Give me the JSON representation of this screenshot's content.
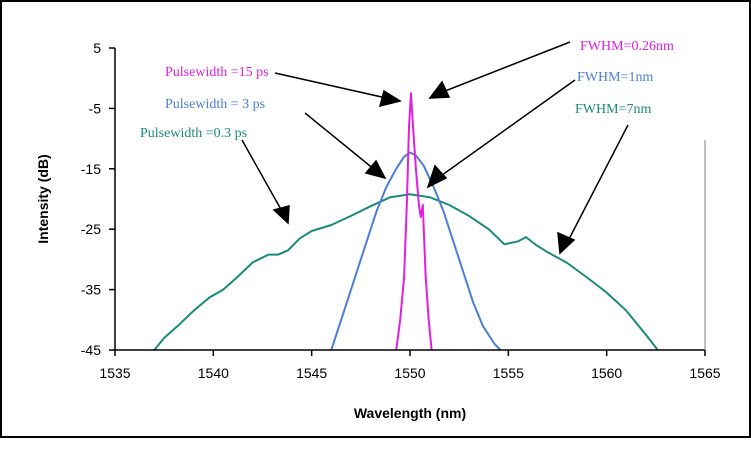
{
  "chart_data": {
    "type": "line",
    "title": "",
    "xlabel": "Wavelength (nm)",
    "ylabel": "Intensity (dB)",
    "xlim": [
      1535,
      1565
    ],
    "ylim": [
      -45,
      5
    ],
    "x_ticks": [
      "1535",
      "1540",
      "1545",
      "1550",
      "1555",
      "1560",
      "1565"
    ],
    "y_ticks": [
      "5",
      "-5",
      "-15",
      "-25",
      "-35",
      "-45"
    ],
    "grid": false,
    "legend": "none",
    "series": [
      {
        "name": "Pulsewidth =0.3 ps",
        "color": "#1a8a7a",
        "points": [
          [
            1537.0,
            -45
          ],
          [
            1537.5,
            -43
          ],
          [
            1538.2,
            -41
          ],
          [
            1539,
            -38.5
          ],
          [
            1539.8,
            -36.3
          ],
          [
            1540.5,
            -35
          ],
          [
            1541.2,
            -33
          ],
          [
            1542,
            -30.5
          ],
          [
            1542.8,
            -29.2
          ],
          [
            1543.3,
            -29.2
          ],
          [
            1543.8,
            -28.5
          ],
          [
            1544.4,
            -26.5
          ],
          [
            1545,
            -25.3
          ],
          [
            1546,
            -24.3
          ],
          [
            1547,
            -22.8
          ],
          [
            1548,
            -21.2
          ],
          [
            1549,
            -19.7
          ],
          [
            1550,
            -19.2
          ],
          [
            1551,
            -19.7
          ],
          [
            1552,
            -21
          ],
          [
            1553,
            -22.8
          ],
          [
            1554,
            -25
          ],
          [
            1554.8,
            -27.5
          ],
          [
            1555.5,
            -27
          ],
          [
            1555.9,
            -26.3
          ],
          [
            1556.4,
            -27.6
          ],
          [
            1557,
            -28.8
          ],
          [
            1558,
            -30.6
          ],
          [
            1559,
            -33
          ],
          [
            1560,
            -35.5
          ],
          [
            1561,
            -38.5
          ],
          [
            1562,
            -42.5
          ],
          [
            1562.6,
            -45
          ]
        ]
      },
      {
        "name": "Pulsewidth =  3 ps",
        "color": "#4a7ed8",
        "points": [
          [
            1546.0,
            -45
          ],
          [
            1546.3,
            -42
          ],
          [
            1546.8,
            -37
          ],
          [
            1547.3,
            -32
          ],
          [
            1547.8,
            -27
          ],
          [
            1548.3,
            -22
          ],
          [
            1548.8,
            -18
          ],
          [
            1549.3,
            -15
          ],
          [
            1549.7,
            -13
          ],
          [
            1550,
            -12.3
          ],
          [
            1550.3,
            -12.8
          ],
          [
            1550.7,
            -14.5
          ],
          [
            1551.2,
            -18
          ],
          [
            1551.7,
            -22
          ],
          [
            1552.2,
            -27
          ],
          [
            1552.7,
            -32
          ],
          [
            1553.2,
            -37
          ],
          [
            1553.7,
            -41
          ],
          [
            1554.3,
            -44
          ],
          [
            1554.6,
            -45
          ]
        ]
      },
      {
        "name": "Pulsewidth =15 ps",
        "color": "#e020e0",
        "points": [
          [
            1549.3,
            -45
          ],
          [
            1549.5,
            -40
          ],
          [
            1549.7,
            -33
          ],
          [
            1549.85,
            -20
          ],
          [
            1549.95,
            -8
          ],
          [
            1550.05,
            -2.5
          ],
          [
            1550.15,
            -8
          ],
          [
            1550.3,
            -15
          ],
          [
            1550.45,
            -21
          ],
          [
            1550.55,
            -23
          ],
          [
            1550.65,
            -21
          ],
          [
            1550.8,
            -33
          ],
          [
            1550.95,
            -40
          ],
          [
            1551.1,
            -45
          ]
        ]
      }
    ],
    "annotations": [
      {
        "text": "Pulsewidth =15 ps",
        "color": "#e020e0"
      },
      {
        "text": "Pulsewidth =  3 ps",
        "color": "#4a7ed8"
      },
      {
        "text": "Pulsewidth =0.3 ps",
        "color": "#1a8a7a"
      },
      {
        "text": "FWHM=0.26nm",
        "color": "#e020e0"
      },
      {
        "text": "FWHM=1nm",
        "color": "#4a7ed8"
      },
      {
        "text": "FWHM=7nm",
        "color": "#1a8a7a"
      }
    ]
  }
}
